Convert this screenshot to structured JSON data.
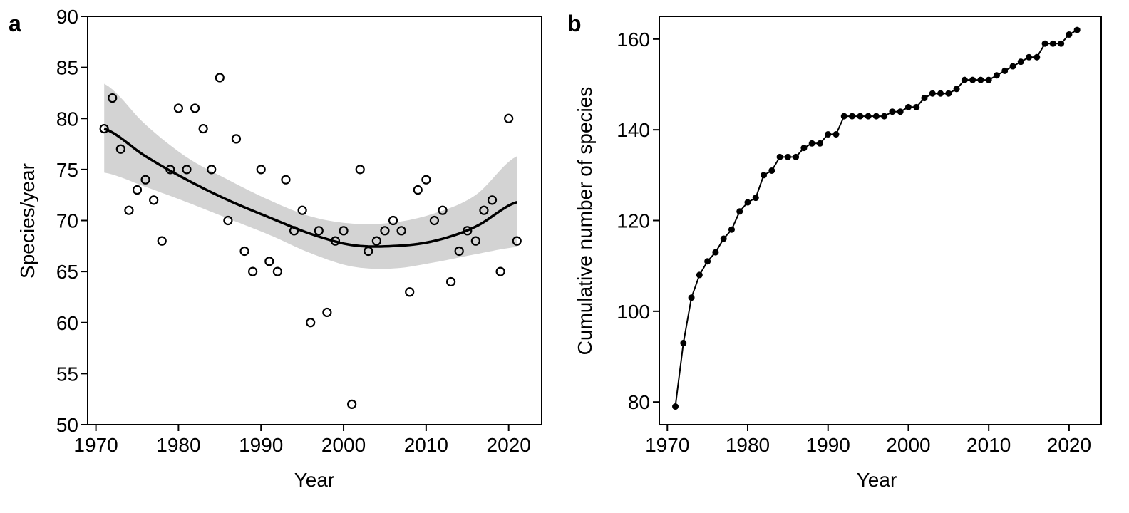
{
  "chart_data": [
    {
      "panel_label": "a",
      "type": "scatter",
      "xlabel": "Year",
      "ylabel": "Species/year",
      "xlim": [
        1969,
        2024
      ],
      "ylim": [
        50,
        90
      ],
      "x_ticks": [
        1970,
        1980,
        1990,
        2000,
        2010,
        2020
      ],
      "y_ticks": [
        50,
        55,
        60,
        65,
        70,
        75,
        80,
        85,
        90
      ],
      "grid": false,
      "x": [
        1971,
        1972,
        1973,
        1974,
        1975,
        1976,
        1977,
        1978,
        1979,
        1980,
        1981,
        1982,
        1983,
        1984,
        1985,
        1986,
        1987,
        1988,
        1989,
        1990,
        1991,
        1992,
        1993,
        1994,
        1995,
        1996,
        1997,
        1998,
        1999,
        2000,
        2001,
        2002,
        2003,
        2004,
        2005,
        2006,
        2007,
        2008,
        2009,
        2010,
        2011,
        2012,
        2013,
        2014,
        2015,
        2016,
        2017,
        2018,
        2019,
        2020,
        2021
      ],
      "y": [
        79,
        82,
        77,
        71,
        73,
        74,
        72,
        68,
        75,
        81,
        75,
        81,
        79,
        75,
        84,
        70,
        78,
        67,
        65,
        75,
        66,
        65,
        74,
        69,
        71,
        60,
        69,
        61,
        68,
        69,
        52,
        75,
        67,
        68,
        69,
        70,
        69,
        63,
        73,
        74,
        70,
        71,
        64,
        67,
        69,
        68,
        71,
        72,
        65,
        80,
        68
      ],
      "fit": {
        "x": [
          1971,
          1976,
          1981,
          1986,
          1991,
          1996,
          2001,
          2006,
          2011,
          2016,
          2021
        ],
        "y": [
          79.0,
          76.3,
          74.0,
          72.0,
          70.3,
          68.7,
          67.6,
          67.5,
          68.0,
          69.4,
          71.8
        ],
        "lower": [
          74.7,
          73.3,
          71.8,
          70.2,
          68.6,
          66.8,
          65.5,
          65.3,
          65.9,
          66.7,
          67.4
        ],
        "upper": [
          83.4,
          79.4,
          76.2,
          74.0,
          72.0,
          70.4,
          69.7,
          69.8,
          70.7,
          72.5,
          76.3
        ]
      },
      "colors": {
        "points": "#000000",
        "fit_line": "#000000",
        "band": "#d3d3d3"
      }
    },
    {
      "panel_label": "b",
      "type": "line",
      "xlabel": "Year",
      "ylabel": "Cumulative number of species",
      "xlim": [
        1969,
        2024
      ],
      "ylim": [
        75,
        165
      ],
      "x_ticks": [
        1970,
        1980,
        1990,
        2000,
        2010,
        2020
      ],
      "y_ticks": [
        80,
        100,
        120,
        140,
        160
      ],
      "grid": false,
      "x": [
        1971,
        1972,
        1973,
        1974,
        1975,
        1976,
        1977,
        1978,
        1979,
        1980,
        1981,
        1982,
        1983,
        1984,
        1985,
        1986,
        1987,
        1988,
        1989,
        1990,
        1991,
        1992,
        1993,
        1994,
        1995,
        1996,
        1997,
        1998,
        1999,
        2000,
        2001,
        2002,
        2003,
        2004,
        2005,
        2006,
        2007,
        2008,
        2009,
        2010,
        2011,
        2012,
        2013,
        2014,
        2015,
        2016,
        2017,
        2018,
        2019,
        2020,
        2021
      ],
      "y": [
        79,
        93,
        103,
        108,
        111,
        113,
        116,
        118,
        122,
        124,
        125,
        130,
        131,
        134,
        134,
        134,
        136,
        137,
        137,
        139,
        139,
        143,
        143,
        143,
        143,
        143,
        143,
        144,
        144,
        145,
        145,
        147,
        148,
        148,
        148,
        149,
        151,
        151,
        151,
        151,
        152,
        153,
        154,
        155,
        156,
        156,
        159,
        159,
        159,
        161,
        162
      ],
      "colors": {
        "line": "#000000",
        "markers": "#000000"
      }
    }
  ]
}
